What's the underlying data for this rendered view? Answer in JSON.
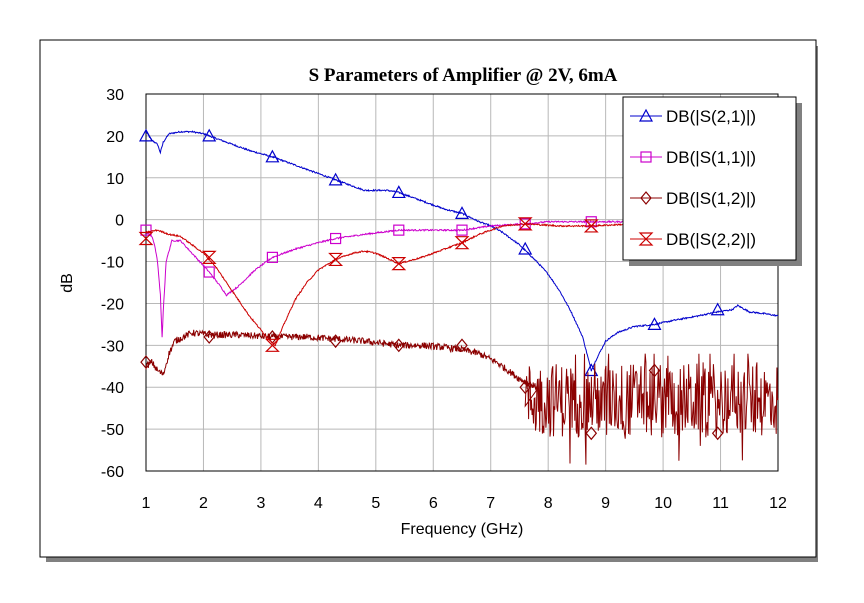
{
  "chart_data": {
    "type": "line",
    "title": "S Parameters of Amplifier @ 2V, 6mA",
    "xlabel": "Frequency (GHz)",
    "ylabel": "dB",
    "xlim": [
      1,
      12
    ],
    "ylim": [
      -60,
      30
    ],
    "xticks": [
      1,
      2,
      3,
      4,
      5,
      6,
      7,
      8,
      9,
      10,
      11,
      12
    ],
    "yticks": [
      30,
      20,
      10,
      0,
      -10,
      -20,
      -30,
      -40,
      -50,
      -60
    ],
    "grid": true,
    "legend_position": "top-right",
    "series": [
      {
        "name": "DB(|S(2,1)|)",
        "color": "#0000cc",
        "marker": "triangle",
        "markers": [
          [
            1.0,
            20
          ],
          [
            2.1,
            20
          ],
          [
            3.2,
            15
          ],
          [
            4.3,
            9.5
          ],
          [
            5.4,
            6.5
          ],
          [
            6.5,
            1.5
          ],
          [
            7.6,
            -7
          ],
          [
            8.75,
            -36
          ],
          [
            9.85,
            -25
          ],
          [
            10.95,
            -21.5
          ]
        ],
        "x": [
          1.0,
          1.1,
          1.2,
          1.25,
          1.3,
          1.4,
          1.6,
          1.8,
          2.0,
          2.2,
          2.5,
          2.8,
          3.2,
          3.6,
          4.0,
          4.3,
          4.6,
          4.8,
          5.0,
          5.2,
          5.4,
          5.8,
          6.2,
          6.5,
          6.8,
          7.0,
          7.2,
          7.5,
          7.8,
          8.0,
          8.2,
          8.4,
          8.6,
          8.75,
          8.85,
          9.0,
          9.2,
          9.5,
          9.85,
          10.2,
          10.6,
          10.95,
          11.2,
          11.3,
          11.5,
          11.8,
          12.0
        ],
        "y": [
          21,
          19,
          18,
          16,
          18.5,
          20.5,
          21,
          21,
          20.5,
          19.5,
          18,
          16.5,
          15,
          13,
          11,
          9.5,
          8,
          7,
          7,
          7,
          6.5,
          4.5,
          2.5,
          1.5,
          -0.5,
          -1.5,
          -3,
          -6,
          -10,
          -13,
          -17,
          -22,
          -28,
          -36,
          -33,
          -29,
          -27,
          -25.5,
          -25,
          -24,
          -23,
          -22,
          -21.5,
          -20.5,
          -22,
          -22.5,
          -23
        ]
      },
      {
        "name": "DB(|S(1,1)|)",
        "color": "#cc00cc",
        "marker": "square",
        "markers": [
          [
            1.0,
            -2.5
          ],
          [
            2.1,
            -12.5
          ],
          [
            3.2,
            -9
          ],
          [
            4.3,
            -4.5
          ],
          [
            5.4,
            -2.5
          ],
          [
            6.5,
            -2.5
          ],
          [
            7.6,
            -1
          ],
          [
            8.75,
            -0.5
          ],
          [
            9.85,
            -0.5
          ],
          [
            10.95,
            -0.5
          ]
        ],
        "x": [
          1.0,
          1.1,
          1.15,
          1.2,
          1.25,
          1.28,
          1.3,
          1.35,
          1.45,
          1.6,
          1.8,
          2.1,
          2.3,
          2.4,
          2.6,
          2.9,
          3.2,
          3.6,
          4.0,
          4.3,
          4.8,
          5.4,
          6.0,
          6.5,
          7.0,
          7.6,
          8.0,
          8.75,
          9.5,
          10.0,
          11.0,
          12.0
        ],
        "y": [
          -3,
          -4,
          -6,
          -10,
          -18,
          -28,
          -22,
          -10,
          -5,
          -5,
          -8,
          -12.5,
          -16,
          -18,
          -16,
          -12,
          -9,
          -7,
          -5.5,
          -4.5,
          -3.5,
          -2.5,
          -2.5,
          -2.5,
          -1.5,
          -1,
          -0.5,
          -0.5,
          -0.5,
          -0.5,
          -0.5,
          -0.5
        ]
      },
      {
        "name": "DB(|S(1,2)|)",
        "color": "#8b0000",
        "marker": "diamond",
        "markers": [
          [
            1.0,
            -34
          ],
          [
            2.1,
            -28
          ],
          [
            3.2,
            -28
          ],
          [
            4.3,
            -29
          ],
          [
            5.4,
            -30
          ],
          [
            6.5,
            -30
          ],
          [
            7.6,
            -40
          ],
          [
            8.75,
            -51
          ],
          [
            9.85,
            -36
          ],
          [
            10.95,
            -51
          ]
        ],
        "x": [
          1.0,
          1.1,
          1.2,
          1.3,
          1.4,
          1.5,
          1.8,
          2.1,
          2.6,
          3.2,
          3.8,
          4.3,
          4.8,
          5.4,
          5.8,
          6.2,
          6.5,
          6.8,
          7.1,
          7.3,
          7.5,
          7.8
        ],
        "y": [
          -35,
          -34,
          -36,
          -37,
          -32,
          -29,
          -27,
          -27.5,
          -27.5,
          -28,
          -28,
          -28.5,
          -29,
          -30,
          -30,
          -30.5,
          -31,
          -32,
          -34,
          -36,
          -38,
          -40
        ],
        "noise": {
          "x_start": 7.6,
          "x_end": 12.0,
          "center_db": -43,
          "min_db": -60,
          "max_db": -32
        }
      },
      {
        "name": "DB(|S(2,2)|)",
        "color": "#cc0000",
        "marker": "hourglass",
        "markers": [
          [
            1.0,
            -4.5
          ],
          [
            2.1,
            -9
          ],
          [
            3.2,
            -30
          ],
          [
            4.3,
            -9.5
          ],
          [
            5.4,
            -10.5
          ],
          [
            6.5,
            -5.5
          ],
          [
            7.6,
            -1
          ],
          [
            8.75,
            -1.5
          ],
          [
            9.85,
            -1
          ],
          [
            10.95,
            -0.5
          ]
        ],
        "x": [
          1.0,
          1.2,
          1.4,
          1.6,
          1.8,
          2.0,
          2.2,
          2.5,
          2.8,
          3.1,
          3.25,
          3.4,
          3.6,
          3.8,
          4.0,
          4.3,
          4.6,
          4.8,
          5.0,
          5.4,
          5.8,
          6.2,
          6.5,
          6.8,
          7.2,
          7.6,
          8.2,
          8.75,
          9.5,
          10.5,
          11.0,
          12.0
        ],
        "y": [
          -3,
          -2.5,
          -3.5,
          -4,
          -6,
          -8,
          -11,
          -17,
          -23,
          -28,
          -30,
          -25,
          -19,
          -15,
          -12,
          -9.5,
          -8,
          -7.5,
          -8,
          -10.5,
          -9,
          -7,
          -5.5,
          -3.5,
          -1.5,
          -1,
          -1.5,
          -1.5,
          -1,
          -1,
          -0.5,
          -0.5
        ]
      }
    ]
  }
}
